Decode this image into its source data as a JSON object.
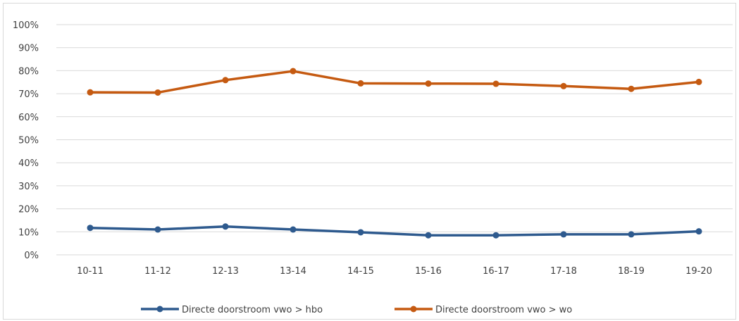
{
  "chart_data": {
    "type": "line",
    "title": "",
    "xlabel": "",
    "ylabel": "",
    "categories": [
      "10-11",
      "11-12",
      "12-13",
      "13-14",
      "14-15",
      "15-16",
      "16-17",
      "17-18",
      "18-19",
      "19-20"
    ],
    "ylim": [
      0,
      100
    ],
    "y_ticks": [
      "0%",
      "10%",
      "20%",
      "30%",
      "40%",
      "50%",
      "60%",
      "70%",
      "80%",
      "90%",
      "100%"
    ],
    "grid": true,
    "legend_position": "bottom",
    "series": [
      {
        "name": "Directe doorstroom vwo > hbo",
        "color": "#2e5a8e",
        "values": [
          11.7,
          11.0,
          12.3,
          11.0,
          9.8,
          8.5,
          8.5,
          8.9,
          8.9,
          10.2
        ]
      },
      {
        "name": "Directe doorstroom vwo > wo",
        "color": "#c55a11",
        "values": [
          70.6,
          70.5,
          75.9,
          79.8,
          74.5,
          74.4,
          74.3,
          73.3,
          72.1,
          75.1
        ]
      }
    ]
  }
}
